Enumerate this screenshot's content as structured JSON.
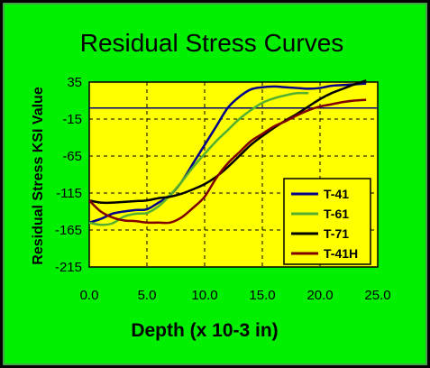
{
  "chart_data": {
    "type": "line",
    "title": "Residual Stress Curves",
    "xlabel": "Depth (x 10-3 in)",
    "ylabel": "Residual Stress KSI Value",
    "xlim": [
      0,
      25
    ],
    "ylim": [
      -215,
      35
    ],
    "x_ticks": [
      "0.0",
      "5.0",
      "10.0",
      "15.0",
      "20.0",
      "25.0"
    ],
    "y_ticks": [
      "35",
      "-15",
      "-65",
      "-115",
      "-165",
      "-215"
    ],
    "grid": true,
    "legend_position": "lower-right",
    "reference_line_y": 0,
    "colors": {
      "background": "#00f000",
      "plot_area": "#ffff00",
      "frame": "#000000",
      "reference_line": "#000080"
    },
    "series": [
      {
        "name": "T-41",
        "color": "#00008b",
        "x": [
          0,
          1,
          2,
          3,
          4,
          5,
          6,
          7,
          8,
          9,
          10,
          11,
          12,
          13,
          14,
          15,
          16,
          17,
          18,
          19,
          20,
          21,
          22,
          23,
          24
        ],
        "y": [
          -155,
          -150,
          -143,
          -140,
          -138,
          -137,
          -128,
          -118,
          -100,
          -75,
          -50,
          -25,
          0,
          15,
          25,
          28,
          29,
          28,
          27,
          26,
          27,
          30,
          31,
          32,
          33
        ]
      },
      {
        "name": "T-61",
        "color": "#55b030",
        "x": [
          0,
          1,
          2,
          3,
          4,
          5,
          6,
          7,
          8,
          9,
          10,
          11,
          12,
          13,
          14,
          15,
          16,
          17,
          18,
          19
        ],
        "y": [
          -155,
          -158,
          -156,
          -147,
          -143,
          -142,
          -133,
          -118,
          -100,
          -80,
          -62,
          -45,
          -30,
          -15,
          -3,
          7,
          13,
          17,
          20,
          20
        ]
      },
      {
        "name": "T-71",
        "color": "#000000",
        "x": [
          0,
          1,
          2,
          3,
          4,
          5,
          6,
          7,
          8,
          9,
          10,
          11,
          12,
          13,
          14,
          15,
          16,
          17,
          18,
          19,
          20,
          21,
          22,
          23,
          24
        ],
        "y": [
          -125,
          -128,
          -128,
          -127,
          -126,
          -125,
          -122,
          -120,
          -116,
          -110,
          -103,
          -93,
          -80,
          -65,
          -50,
          -38,
          -27,
          -17,
          -8,
          2,
          12,
          20,
          26,
          32,
          37
        ]
      },
      {
        "name": "T-41H",
        "color": "#800000",
        "x": [
          0,
          1,
          2,
          3,
          4,
          5,
          6,
          7,
          8,
          9,
          10,
          11,
          12,
          13,
          14,
          15,
          16,
          17,
          18,
          19,
          20,
          21,
          22,
          23,
          24
        ],
        "y": [
          -125,
          -140,
          -148,
          -152,
          -153,
          -155,
          -155,
          -155,
          -148,
          -135,
          -120,
          -95,
          -75,
          -60,
          -45,
          -35,
          -25,
          -18,
          -10,
          -3,
          2,
          5,
          8,
          10,
          11
        ]
      }
    ]
  }
}
